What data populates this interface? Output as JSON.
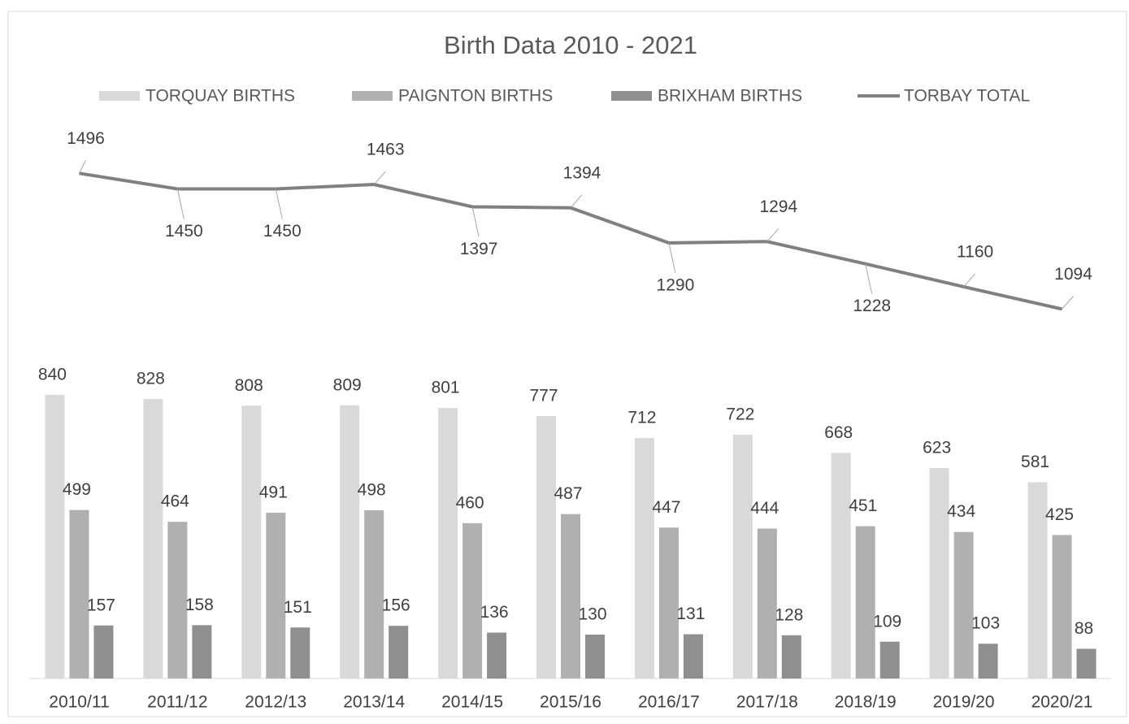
{
  "chart_data": {
    "type": "bar-line",
    "title": "Birth Data 2010 - 2021",
    "categories": [
      "2010/11",
      "2011/12",
      "2012/13",
      "2013/14",
      "2014/15",
      "2015/16",
      "2016/17",
      "2017/18",
      "2018/19",
      "2019/20",
      "2020/21"
    ],
    "series": [
      {
        "name": "TORQUAY BIRTHS",
        "type": "bar",
        "color": "#d9d9d9",
        "values": [
          840,
          828,
          808,
          809,
          801,
          777,
          712,
          722,
          668,
          623,
          581
        ]
      },
      {
        "name": "PAIGNTON BIRTHS",
        "type": "bar",
        "color": "#b0b0b0",
        "values": [
          499,
          464,
          491,
          498,
          460,
          487,
          447,
          444,
          451,
          434,
          425
        ]
      },
      {
        "name": "BRIXHAM BIRTHS",
        "type": "bar",
        "color": "#8f8f8f",
        "values": [
          157,
          158,
          151,
          156,
          136,
          130,
          131,
          128,
          109,
          103,
          88
        ]
      },
      {
        "name": "TORBAY TOTAL",
        "type": "line",
        "color": "#808080",
        "values": [
          1496,
          1450,
          1450,
          1463,
          1397,
          1394,
          1290,
          1294,
          1228,
          1160,
          1094
        ]
      }
    ],
    "ylim": [
      0,
      1800
    ],
    "legend": "top"
  }
}
